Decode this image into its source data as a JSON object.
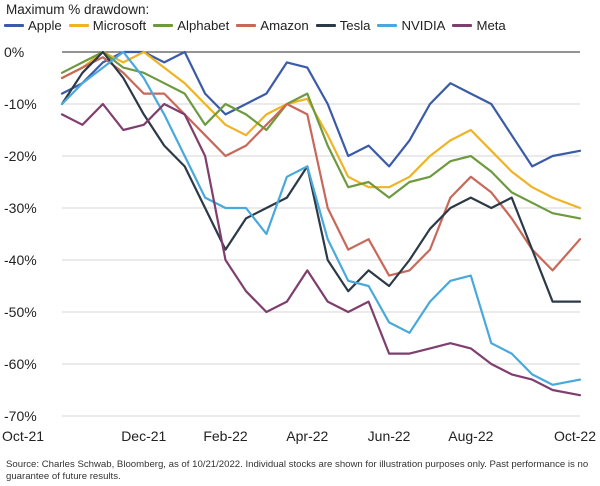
{
  "chart_data": {
    "type": "line",
    "title": "Maximum % drawdown:",
    "ylim": [
      -70,
      0
    ],
    "yticks": [
      {
        "value": 0,
        "label": "0%"
      },
      {
        "value": -10,
        "label": "-10%"
      },
      {
        "value": -20,
        "label": "-20%"
      },
      {
        "value": -30,
        "label": "-30%"
      },
      {
        "value": -40,
        "label": "-40%"
      },
      {
        "value": -50,
        "label": "-50%"
      },
      {
        "value": -60,
        "label": "-60%"
      },
      {
        "value": -70,
        "label": "-70%"
      }
    ],
    "xlim": [
      0,
      12.67
    ],
    "xticks": [
      {
        "value": 0,
        "label": "Oct-21"
      },
      {
        "value": 2,
        "label": "Dec-21"
      },
      {
        "value": 4,
        "label": "Feb-22"
      },
      {
        "value": 6,
        "label": "Apr-22"
      },
      {
        "value": 8,
        "label": "Jun-22"
      },
      {
        "value": 10,
        "label": "Aug-22"
      },
      {
        "value": 12,
        "label": "Oct-22"
      }
    ],
    "x_units": "months since Oct-21",
    "series": [
      {
        "name": "Apple",
        "color": "#3b5ba9",
        "x": [
          0,
          0.5,
          1,
          1.5,
          2,
          2.5,
          3,
          3.5,
          4,
          4.5,
          5,
          5.5,
          6,
          6.5,
          7,
          7.5,
          8,
          8.5,
          9,
          9.5,
          10,
          10.5,
          11,
          11.5,
          12,
          12.67
        ],
        "y": [
          -8,
          -6,
          -2,
          0,
          0,
          -2,
          0,
          -8,
          -12,
          -10,
          -8,
          -2,
          -3,
          -10,
          -20,
          -18,
          -22,
          -17,
          -10,
          -6,
          -8,
          -10,
          -16,
          -22,
          -20,
          -19
        ]
      },
      {
        "name": "Microsoft",
        "color": "#f0b323",
        "x": [
          0,
          0.5,
          1,
          1.5,
          2,
          2.5,
          3,
          3.5,
          4,
          4.5,
          5,
          5.5,
          6,
          6.5,
          7,
          7.5,
          8,
          8.5,
          9,
          9.5,
          10,
          10.5,
          11,
          11.5,
          12,
          12.67
        ],
        "y": [
          -5,
          -3,
          0,
          -2,
          0,
          -3,
          -6,
          -10,
          -14,
          -16,
          -12,
          -10,
          -9,
          -16,
          -24,
          -26,
          -26,
          -24,
          -20,
          -17,
          -15,
          -19,
          -23,
          -26,
          -28,
          -30
        ]
      },
      {
        "name": "Alphabet",
        "color": "#6d9a3f",
        "x": [
          0,
          0.5,
          1,
          1.5,
          2,
          2.5,
          3,
          3.5,
          4,
          4.5,
          5,
          5.5,
          6,
          6.5,
          7,
          7.5,
          8,
          8.5,
          9,
          9.5,
          10,
          10.5,
          11,
          11.5,
          12,
          12.67
        ],
        "y": [
          -4,
          -2,
          0,
          -3,
          -4,
          -6,
          -8,
          -14,
          -10,
          -12,
          -15,
          -10,
          -8,
          -18,
          -26,
          -25,
          -28,
          -25,
          -24,
          -21,
          -20,
          -23,
          -27,
          -29,
          -31,
          -32
        ]
      },
      {
        "name": "Amazon",
        "color": "#c8685a",
        "x": [
          0,
          0.5,
          1,
          1.5,
          2,
          2.5,
          3,
          3.5,
          4,
          4.5,
          5,
          5.5,
          6,
          6.5,
          7,
          7.5,
          8,
          8.5,
          9,
          9.5,
          10,
          10.5,
          11,
          11.5,
          12,
          12.67
        ],
        "y": [
          -5,
          -3,
          -1,
          -4,
          -8,
          -8,
          -12,
          -16,
          -20,
          -18,
          -14,
          -10,
          -12,
          -30,
          -38,
          -36,
          -43,
          -42,
          -38,
          -28,
          -24,
          -27,
          -32,
          -38,
          -42,
          -36
        ]
      },
      {
        "name": "Tesla",
        "color": "#2c3a47",
        "x": [
          0,
          0.5,
          1,
          1.5,
          2,
          2.5,
          3,
          3.5,
          4,
          4.5,
          5,
          5.5,
          6,
          6.5,
          7,
          7.5,
          8,
          8.5,
          9,
          9.5,
          10,
          10.5,
          11,
          11.5,
          12,
          12.67
        ],
        "y": [
          -10,
          -4,
          0,
          -5,
          -12,
          -18,
          -22,
          -30,
          -38,
          -32,
          -30,
          -28,
          -22,
          -40,
          -46,
          -42,
          -45,
          -40,
          -34,
          -30,
          -28,
          -30,
          -28,
          -38,
          -48,
          -48
        ]
      },
      {
        "name": "NVIDIA",
        "color": "#49a8dc",
        "x": [
          0,
          0.5,
          1,
          1.5,
          2,
          2.5,
          3,
          3.5,
          4,
          4.5,
          5,
          5.5,
          6,
          6.5,
          7,
          7.5,
          8,
          8.5,
          9,
          9.5,
          10,
          10.5,
          11,
          11.5,
          12,
          12.67
        ],
        "y": [
          -10,
          -6,
          -3,
          0,
          -5,
          -12,
          -20,
          -28,
          -30,
          -30,
          -35,
          -24,
          -22,
          -36,
          -44,
          -45,
          -52,
          -54,
          -48,
          -44,
          -43,
          -56,
          -58,
          -62,
          -64,
          -63
        ]
      },
      {
        "name": "Meta",
        "color": "#7f3f6e",
        "x": [
          0,
          0.5,
          1,
          1.5,
          2,
          2.5,
          3,
          3.5,
          4,
          4.5,
          5,
          5.5,
          6,
          6.5,
          7,
          7.5,
          8,
          8.5,
          9,
          9.5,
          10,
          10.5,
          11,
          11.5,
          12,
          12.67
        ],
        "y": [
          -12,
          -14,
          -10,
          -15,
          -14,
          -10,
          -12,
          -20,
          -40,
          -46,
          -50,
          -48,
          -42,
          -48,
          -50,
          -48,
          -58,
          -58,
          -57,
          -56,
          -57,
          -60,
          -62,
          -63,
          -65,
          -66
        ]
      }
    ]
  },
  "footnote": "Source: Charles Schwab, Bloomberg, as of 10/21/2022. Individual stocks are shown for illustration purposes only. Past performance is no guarantee of future results."
}
